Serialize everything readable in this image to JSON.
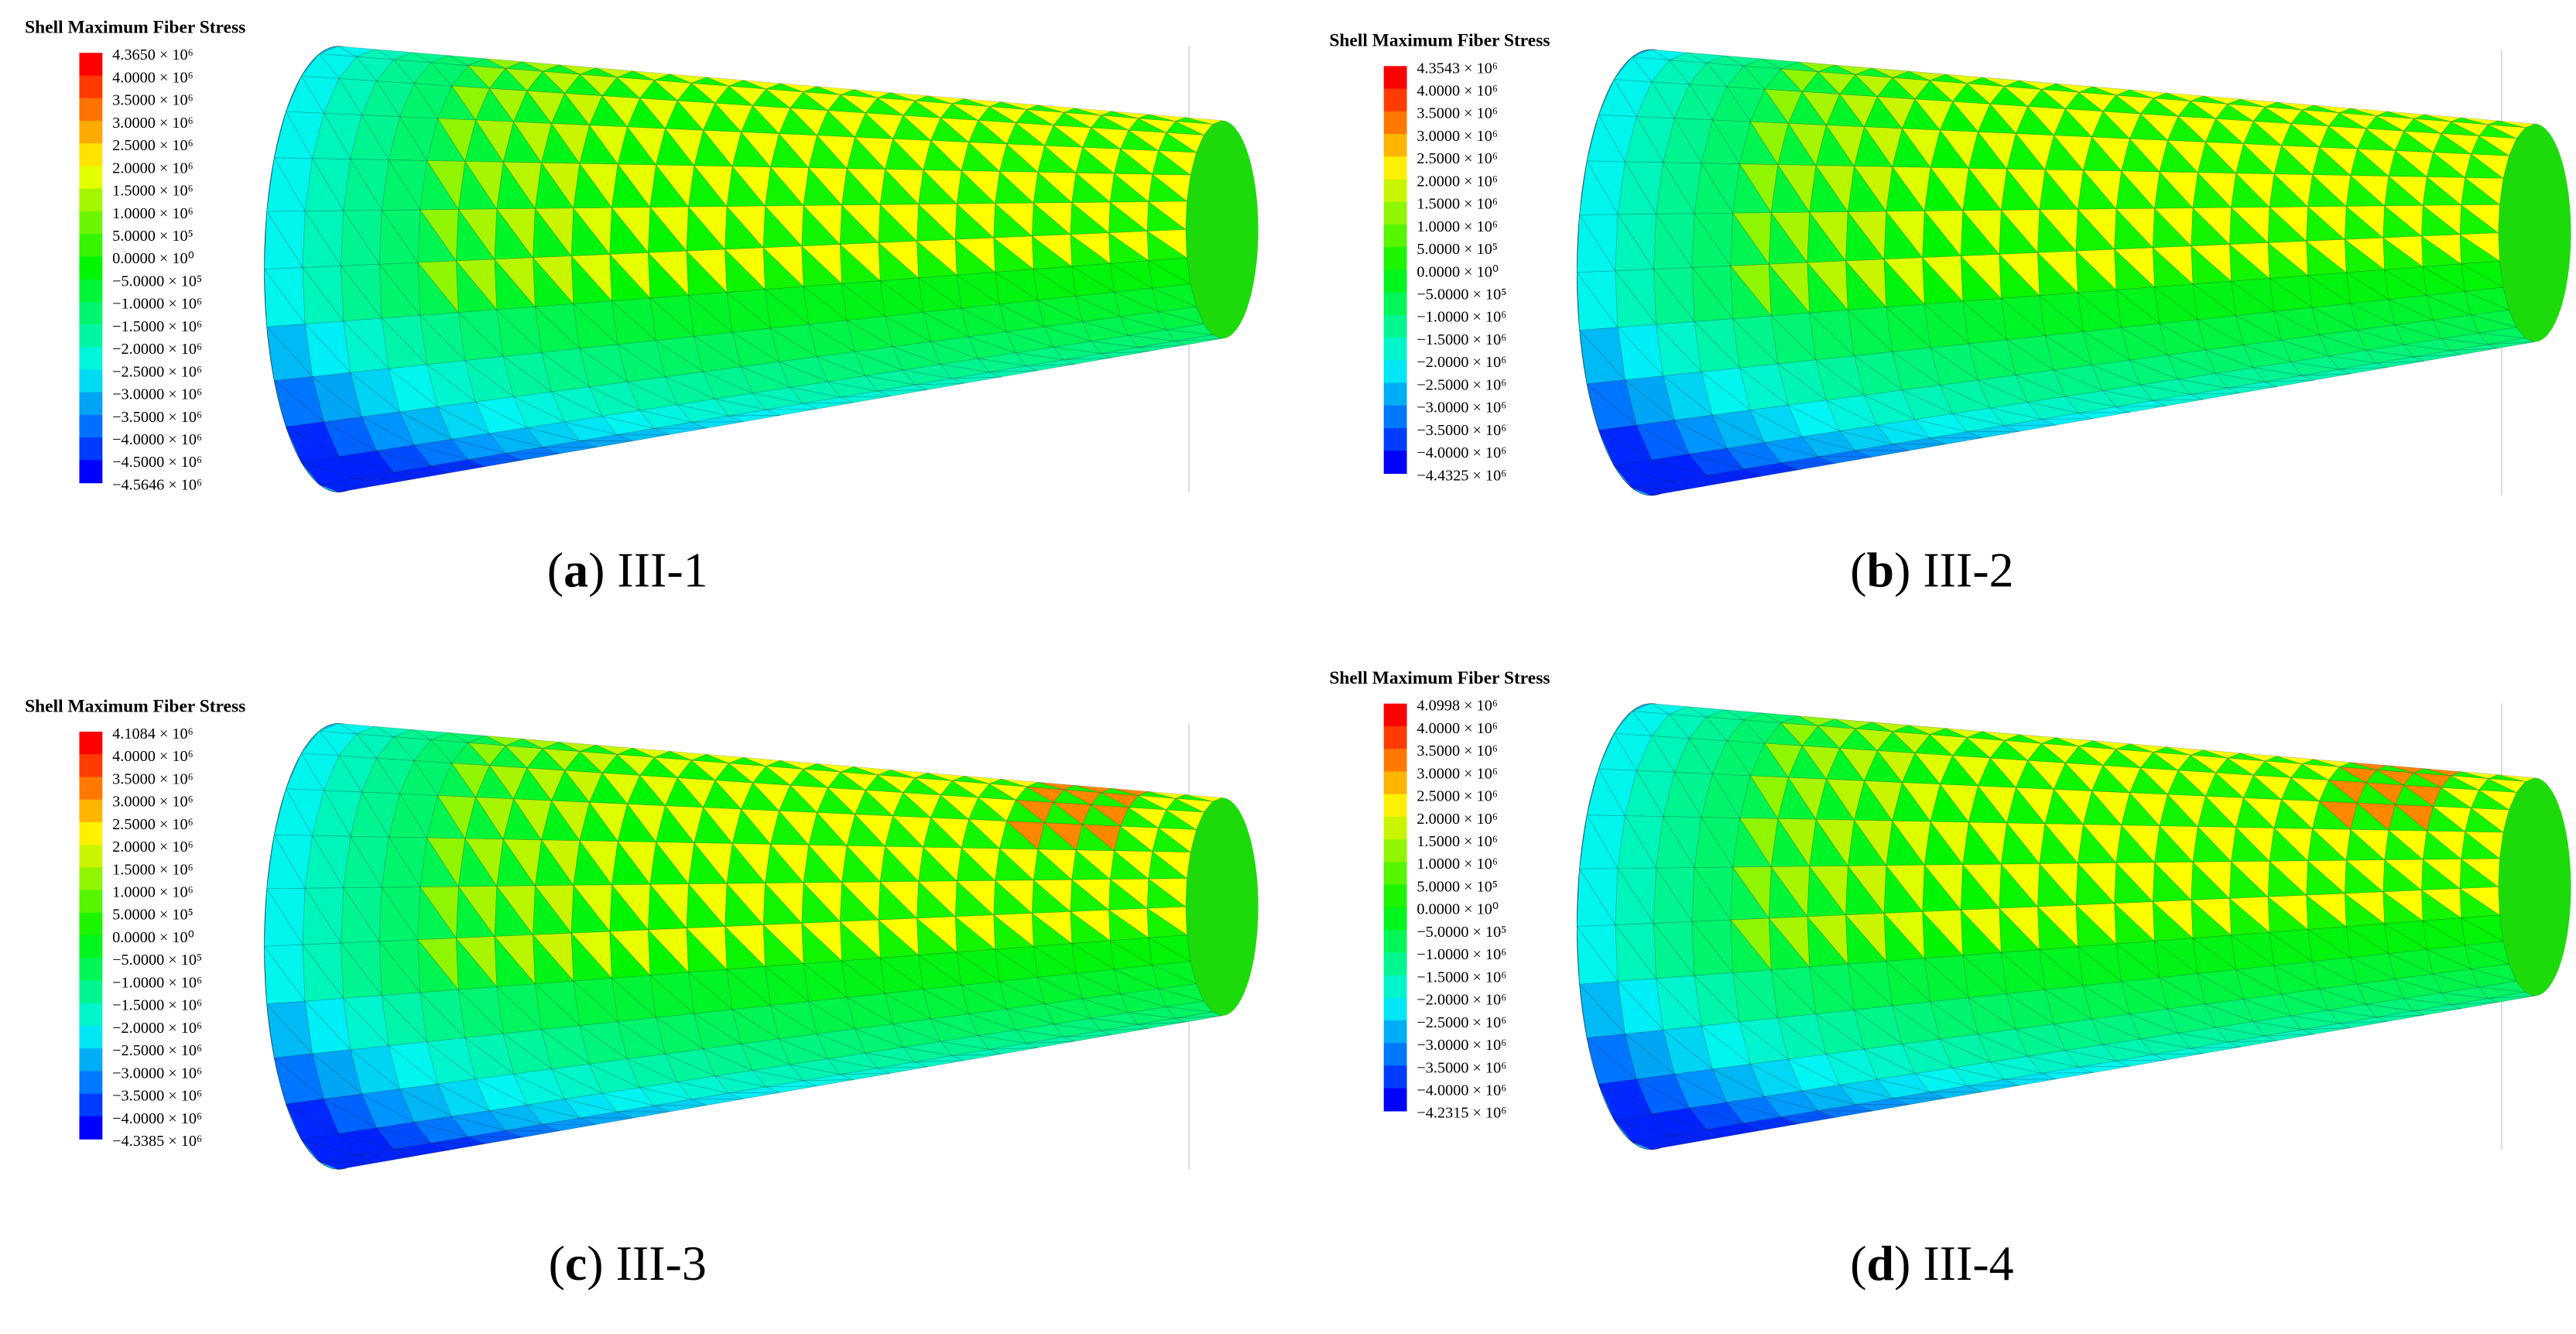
{
  "panels": [
    {
      "legend": {
        "title": "Shell Maximum Fiber Stress",
        "labels": [
          "4.3650 × 10⁶",
          "4.0000 × 10⁶",
          "3.5000 × 10⁶",
          "3.0000 × 10⁶",
          "2.5000 × 10⁶",
          "2.0000 × 10⁶",
          "1.5000 × 10⁶",
          "1.0000 × 10⁶",
          "5.0000 × 10⁵",
          "0.0000 × 10⁰",
          "−5.0000 × 10⁵",
          "−1.0000 × 10⁶",
          "−1.5000 × 10⁶",
          "−2.0000 × 10⁶",
          "−2.5000 × 10⁶",
          "−3.0000 × 10⁶",
          "−3.5000 × 10⁶",
          "−4.0000 × 10⁶",
          "−4.5000 × 10⁶",
          "−4.5646 × 10⁶"
        ]
      },
      "caption": {
        "prefix": "(",
        "letter": "a",
        "suffix": ") III-1"
      }
    },
    {
      "legend": {
        "title": "Shell Maximum Fiber Stress",
        "labels": [
          "4.3543 × 10⁶",
          "4.0000 × 10⁶",
          "3.5000 × 10⁶",
          "3.0000 × 10⁶",
          "2.5000 × 10⁶",
          "2.0000 × 10⁶",
          "1.5000 × 10⁶",
          "1.0000 × 10⁶",
          "5.0000 × 10⁵",
          "0.0000 × 10⁰",
          "−5.0000 × 10⁵",
          "−1.0000 × 10⁶",
          "−1.5000 × 10⁶",
          "−2.0000 × 10⁶",
          "−2.5000 × 10⁶",
          "−3.0000 × 10⁶",
          "−3.5000 × 10⁶",
          "−4.0000 × 10⁶",
          "−4.4325 × 10⁶"
        ]
      },
      "caption": {
        "prefix": "(",
        "letter": "b",
        "suffix": ") III-2"
      }
    },
    {
      "legend": {
        "title": "Shell Maximum Fiber Stress",
        "labels": [
          "4.1084 × 10⁶",
          "4.0000 × 10⁶",
          "3.5000 × 10⁶",
          "3.0000 × 10⁶",
          "2.5000 × 10⁶",
          "2.0000 × 10⁶",
          "1.5000 × 10⁶",
          "1.0000 × 10⁶",
          "5.0000 × 10⁵",
          "0.0000 × 10⁰",
          "−5.0000 × 10⁵",
          "−1.0000 × 10⁶",
          "−1.5000 × 10⁶",
          "−2.0000 × 10⁶",
          "−2.5000 × 10⁶",
          "−3.0000 × 10⁶",
          "−3.5000 × 10⁶",
          "−4.0000 × 10⁶",
          "−4.3385 × 10⁶"
        ]
      },
      "caption": {
        "prefix": "(",
        "letter": "c",
        "suffix": ") III-3"
      }
    },
    {
      "legend": {
        "title": "Shell Maximum Fiber Stress",
        "labels": [
          "4.0998 × 10⁶",
          "4.0000 × 10⁶",
          "3.5000 × 10⁶",
          "3.0000 × 10⁶",
          "2.5000 × 10⁶",
          "2.0000 × 10⁶",
          "1.5000 × 10⁶",
          "1.0000 × 10⁶",
          "5.0000 × 10⁵",
          "0.0000 × 10⁰",
          "−5.0000 × 10⁵",
          "−1.0000 × 10⁶",
          "−1.5000 × 10⁶",
          "−2.0000 × 10⁶",
          "−2.5000 × 10⁶",
          "−3.0000 × 10⁶",
          "−3.5000 × 10⁶",
          "−4.0000 × 10⁶",
          "−4.2315 × 10⁶"
        ]
      },
      "caption": {
        "prefix": "(",
        "letter": "d",
        "suffix": ") III-4"
      }
    }
  ]
}
